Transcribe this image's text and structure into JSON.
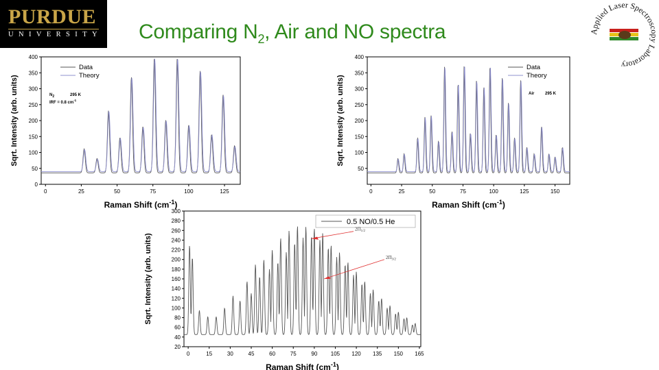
{
  "header": {
    "logo_top": "PURDUE",
    "logo_bottom": "UNIVERSITY",
    "title_pre": "Comparing N",
    "title_sub": "2",
    "title_post": ", Air and NO spectra",
    "seal_ring": "Applied Laser Spectroscopy Laboratory"
  },
  "chart_data": [
    {
      "type": "line",
      "xlabel": "Raman Shift (cm",
      "xlabel_sup": "-1",
      "xlabel_close": ")",
      "ylabel": "Sqrt. Intensity (arb. units)",
      "xlim": [
        -3,
        136
      ],
      "ylim": [
        0,
        400
      ],
      "xticks": [
        0,
        25,
        50,
        75,
        100,
        125
      ],
      "yticks": [
        0,
        50,
        100,
        150,
        200,
        250,
        300,
        350,
        400
      ],
      "legend": [
        "Data",
        "Theory"
      ],
      "annotation_species": "N",
      "annotation_sub": "2",
      "annotation_temp": "295 K",
      "annotation_irf": "IRF = 0.8 cm",
      "annotation_irf_sup": "-1",
      "baseline": 40,
      "peaks": [
        [
          27,
          115
        ],
        [
          36,
          85
        ],
        [
          44,
          235
        ],
        [
          52,
          150
        ],
        [
          60,
          340
        ],
        [
          68,
          185
        ],
        [
          76,
          400
        ],
        [
          84,
          205
        ],
        [
          92,
          400
        ],
        [
          100,
          190
        ],
        [
          108,
          360
        ],
        [
          116,
          160
        ],
        [
          124,
          285
        ],
        [
          132,
          125
        ]
      ],
      "colors": {
        "data": "#555555",
        "theory": "#8f90cf"
      }
    },
    {
      "type": "line",
      "xlabel": "Raman Shift (cm",
      "xlabel_sup": "-1",
      "xlabel_close": ")",
      "ylabel": "Sqrt. Intensity (arb. units)",
      "xlim": [
        -3,
        162
      ],
      "ylim": [
        0,
        400
      ],
      "xticks": [
        0,
        25,
        50,
        75,
        100,
        125,
        150
      ],
      "yticks": [
        50,
        100,
        150,
        200,
        250,
        300,
        350,
        400
      ],
      "legend": [
        "Data",
        "Theory"
      ],
      "annotation_species": "Air",
      "annotation_temp": "295 K",
      "baseline": 40,
      "peaks": [
        [
          22,
          85
        ],
        [
          27,
          100
        ],
        [
          38,
          150
        ],
        [
          44,
          215
        ],
        [
          49,
          220
        ],
        [
          55,
          140
        ],
        [
          60,
          375
        ],
        [
          66,
          170
        ],
        [
          71,
          320
        ],
        [
          76,
          380
        ],
        [
          81,
          165
        ],
        [
          86,
          330
        ],
        [
          92,
          310
        ],
        [
          97,
          375
        ],
        [
          102,
          160
        ],
        [
          107,
          340
        ],
        [
          112,
          260
        ],
        [
          117,
          150
        ],
        [
          122,
          330
        ],
        [
          127,
          120
        ],
        [
          133,
          100
        ],
        [
          139,
          185
        ],
        [
          145,
          100
        ],
        [
          150,
          90
        ],
        [
          156,
          120
        ]
      ],
      "colors": {
        "data": "#555555",
        "theory": "#8f90cf"
      }
    },
    {
      "type": "line",
      "xlabel": "Raman Shift (cm",
      "xlabel_sup": "-1",
      "xlabel_close": ")",
      "ylabel": "Sqrt. Intensity (arb. units)",
      "xlim": [
        -3,
        166
      ],
      "ylim": [
        20,
        300
      ],
      "xticks": [
        0,
        15,
        30,
        45,
        60,
        75,
        90,
        105,
        120,
        135,
        150,
        165
      ],
      "yticks": [
        20,
        40,
        60,
        80,
        100,
        120,
        140,
        160,
        180,
        200,
        220,
        240,
        260,
        280,
        300
      ],
      "legend": [
        "0.5 NO/0.5 He"
      ],
      "label_1": "2Π",
      "label_1_sub": "1/2",
      "label_2": "2Π",
      "label_2_sub": "3/2",
      "peaks": [
        [
          1,
          230
        ],
        [
          3,
          205
        ],
        [
          8,
          95
        ],
        [
          14,
          82
        ],
        [
          20,
          82
        ],
        [
          26,
          100
        ],
        [
          32,
          125
        ],
        [
          37,
          115
        ],
        [
          42,
          155
        ],
        [
          45,
          130
        ],
        [
          48,
          190
        ],
        [
          51,
          165
        ],
        [
          54,
          200
        ],
        [
          58,
          180
        ],
        [
          60,
          220
        ],
        [
          64,
          195
        ],
        [
          66,
          245
        ],
        [
          70,
          215
        ],
        [
          72,
          260
        ],
        [
          76,
          235
        ],
        [
          78,
          270
        ],
        [
          82,
          245
        ],
        [
          84,
          268
        ],
        [
          88,
          250
        ],
        [
          90,
          265
        ],
        [
          94,
          240
        ],
        [
          96,
          255
        ],
        [
          100,
          225
        ],
        [
          102,
          230
        ],
        [
          106,
          205
        ],
        [
          108,
          215
        ],
        [
          112,
          190
        ],
        [
          114,
          195
        ],
        [
          118,
          168
        ],
        [
          120,
          175
        ],
        [
          124,
          150
        ],
        [
          126,
          155
        ],
        [
          130,
          130
        ],
        [
          132,
          138
        ],
        [
          136,
          115
        ],
        [
          138,
          120
        ],
        [
          142,
          100
        ],
        [
          144,
          105
        ],
        [
          148,
          88
        ],
        [
          150,
          92
        ],
        [
          154,
          78
        ],
        [
          156,
          80
        ],
        [
          160,
          65
        ],
        [
          162,
          68
        ]
      ],
      "colors": {
        "data": "#555555",
        "arrow": "#e03030"
      }
    }
  ]
}
